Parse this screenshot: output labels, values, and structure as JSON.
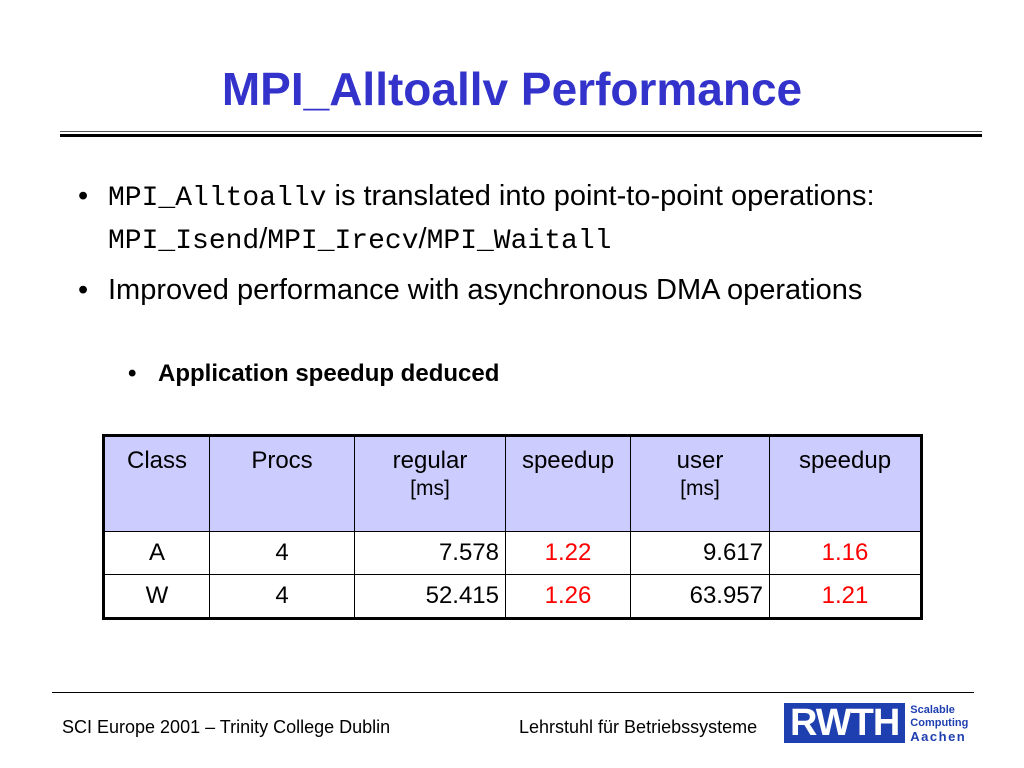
{
  "slide": {
    "title": "MPI_Alltoallv Performance",
    "bullets": [
      {
        "parts": [
          {
            "code": "MPI_Alltoallv"
          },
          {
            "text": " is translated into point-to-point operations: "
          },
          {
            "code": "MPI_Isend"
          },
          {
            "text": "/"
          },
          {
            "code": "MPI_Irecv"
          },
          {
            "text": "/"
          },
          {
            "code": "MPI_Waitall"
          }
        ]
      },
      {
        "text": "Improved performance with asynchronous DMA operations"
      }
    ],
    "sub_bullet": "Application speedup deduced",
    "bullet_glyph": "•"
  },
  "table": {
    "headers": [
      {
        "label": "Class",
        "unit": ""
      },
      {
        "label": "Procs",
        "unit": ""
      },
      {
        "label": "regular",
        "unit": "[ms]"
      },
      {
        "label": "speedup",
        "unit": ""
      },
      {
        "label": "user",
        "unit": "[ms]"
      },
      {
        "label": "speedup",
        "unit": ""
      }
    ],
    "rows": [
      [
        "A",
        "4",
        "7.578",
        "1.22",
        "9.617",
        "1.16"
      ],
      [
        "W",
        "4",
        "52.415",
        "1.26",
        "63.957",
        "1.21"
      ]
    ],
    "speedup_color": "#ff0000",
    "header_bg": "#ccccff"
  },
  "footer": {
    "left": "SCI Europe 2001 – Trinity College Dublin",
    "right": "Lehrstuhl für Betriebssysteme",
    "logo": {
      "word": "RWTH",
      "line1": "Scalable",
      "line2": "Computing",
      "line3": "Aachen"
    }
  }
}
